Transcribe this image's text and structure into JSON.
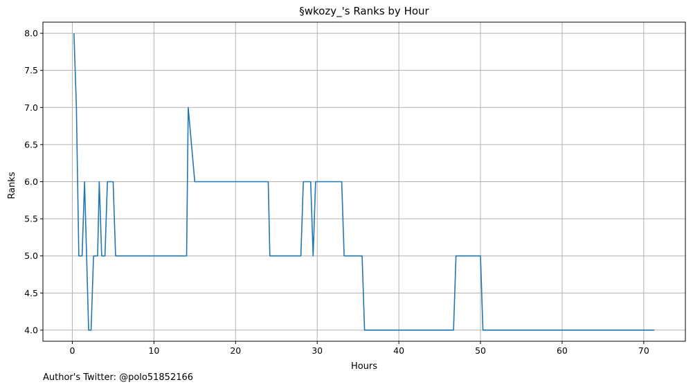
{
  "chart_data": {
    "type": "line",
    "title": "§wkozy_'s Ranks by Hour",
    "xlabel": "Hours",
    "ylabel": "Ranks",
    "xlim": [
      -3.6,
      75.1
    ],
    "ylim": [
      3.85,
      8.15
    ],
    "x_ticks": [
      0,
      10,
      20,
      30,
      40,
      50,
      60,
      70
    ],
    "y_ticks": [
      4.0,
      4.5,
      5.0,
      5.5,
      6.0,
      6.5,
      7.0,
      7.5,
      8.0
    ],
    "grid": true,
    "line_color": "#1f77b4",
    "series": [
      {
        "x": [
          0.2,
          0.5,
          0.8,
          1.2,
          1.5,
          2.0,
          2.3,
          2.6,
          3.1,
          3.3,
          3.6,
          4.0,
          4.3,
          5.0,
          5.3,
          14.0,
          14.2,
          15.0,
          24.0,
          24.2,
          28.0,
          28.3,
          29.2,
          29.5,
          29.8,
          33.0,
          33.3,
          35.5,
          35.8,
          46.7,
          47.0,
          50.0,
          50.3,
          71.3
        ],
        "y": [
          8.0,
          7.0,
          5.0,
          5.0,
          6.0,
          4.0,
          4.0,
          5.0,
          5.0,
          6.0,
          5.0,
          5.0,
          6.0,
          6.0,
          5.0,
          5.0,
          7.0,
          6.0,
          6.0,
          5.0,
          5.0,
          6.0,
          6.0,
          5.0,
          6.0,
          6.0,
          5.0,
          5.0,
          4.0,
          4.0,
          5.0,
          5.0,
          4.0,
          4.0
        ]
      }
    ]
  },
  "footer": {
    "credit": "Author's Twitter: @polo51852166"
  }
}
